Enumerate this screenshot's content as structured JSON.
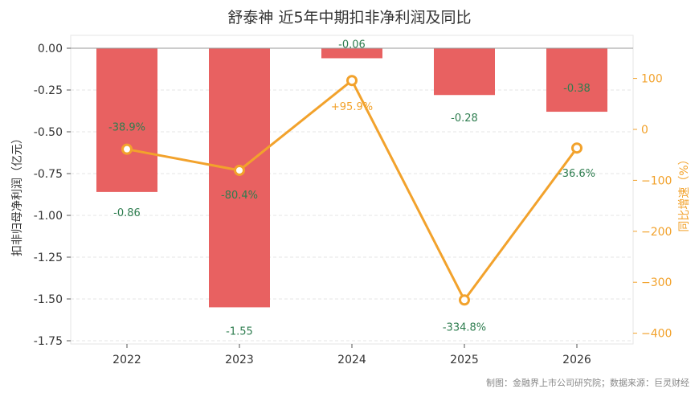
{
  "chart_data": {
    "type": "bar+line",
    "title": "舒泰神 近5年中期扣非净利润及同比",
    "categories": [
      "2022",
      "2023",
      "2024",
      "2025",
      "2026"
    ],
    "bar_series": {
      "values": [
        -0.86,
        -1.55,
        -0.06,
        -0.28,
        -0.38
      ],
      "labels": [
        "-0.86",
        "-1.55",
        "-0.06",
        "-0.28",
        "-0.38"
      ],
      "color": "#E86161"
    },
    "line_series": {
      "values": [
        -38.9,
        -80.4,
        95.9,
        -334.8,
        -36.6
      ],
      "labels": [
        "-38.9%",
        "-80.4%",
        "+95.9%",
        "-334.8%",
        "-36.6%"
      ],
      "color": "#F2A22C",
      "negative_label_color": "#2E7D4F",
      "positive_label_color": "#F2A22C"
    },
    "y_left": {
      "label": "扣非归母净利润（亿元）",
      "ylim": [
        -1.75,
        0.0
      ],
      "ticks": [
        0.0,
        -0.25,
        -0.5,
        -0.75,
        -1.0,
        -1.25,
        -1.5,
        -1.75
      ],
      "tick_labels": [
        "0.00",
        "-0.25",
        "-0.50",
        "-0.75",
        "-1.00",
        "-1.25",
        "-1.50",
        "-1.75"
      ]
    },
    "y_right": {
      "label": "同比增速（%）",
      "ticks": [
        100,
        0,
        -100,
        -200,
        -300,
        -400
      ],
      "tick_labels": [
        "100",
        "0",
        "−100",
        "−200",
        "−300",
        "−400"
      ]
    },
    "grid": true,
    "source": "制图：金融界上市公司研究院；数据来源：巨灵财经"
  }
}
